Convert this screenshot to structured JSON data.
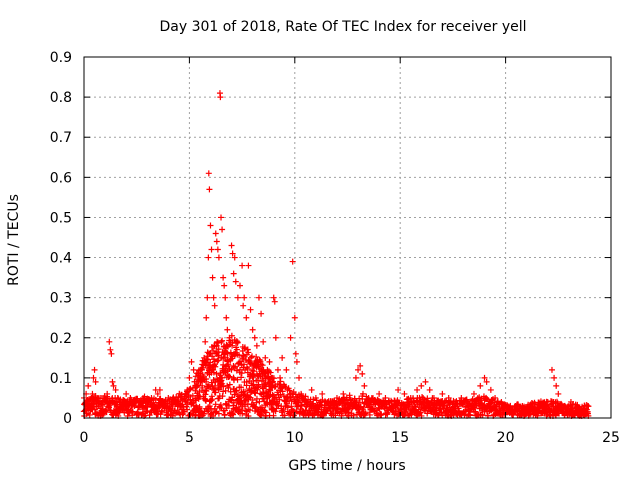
{
  "chart_data": {
    "type": "scatter",
    "title": "Day 301 of 2018, Rate Of TEC Index for receiver yell",
    "xlabel": "GPS time / hours",
    "ylabel": "ROTI / TECUs",
    "xlim": [
      0,
      25
    ],
    "ylim": [
      0,
      0.9
    ],
    "xticks": [
      0,
      5,
      10,
      15,
      20,
      25
    ],
    "yticks": [
      0,
      0.1,
      0.2,
      0.3,
      0.4,
      0.5,
      0.6,
      0.7,
      0.8,
      0.9
    ],
    "xtick_labels": [
      "0",
      "5",
      "10",
      "15",
      "20",
      "25"
    ],
    "ytick_labels": [
      "0",
      "0.1",
      "0.2",
      "0.3",
      "0.4",
      "0.5",
      "0.6",
      "0.7",
      "0.8",
      "0.9"
    ],
    "grid": true,
    "marker": "+",
    "color": "#ff0000",
    "series": [
      {
        "name": "ROTI",
        "points": [
          [
            0.0,
            0.05
          ],
          [
            0.1,
            0.06
          ],
          [
            0.15,
            0.03
          ],
          [
            0.2,
            0.08
          ],
          [
            0.3,
            0.02
          ],
          [
            0.35,
            0.05
          ],
          [
            0.4,
            0.06
          ],
          [
            0.45,
            0.1
          ],
          [
            0.5,
            0.12
          ],
          [
            0.55,
            0.09
          ],
          [
            0.6,
            0.04
          ],
          [
            0.7,
            0.03
          ],
          [
            0.8,
            0.05
          ],
          [
            0.9,
            0.02
          ],
          [
            1.0,
            0.04
          ],
          [
            1.1,
            0.06
          ],
          [
            1.2,
            0.19
          ],
          [
            1.25,
            0.17
          ],
          [
            1.3,
            0.16
          ],
          [
            1.35,
            0.09
          ],
          [
            1.4,
            0.08
          ],
          [
            1.5,
            0.07
          ],
          [
            1.6,
            0.05
          ],
          [
            1.8,
            0.04
          ],
          [
            2.0,
            0.06
          ],
          [
            2.2,
            0.05
          ],
          [
            2.4,
            0.03
          ],
          [
            2.6,
            0.04
          ],
          [
            2.8,
            0.05
          ],
          [
            3.0,
            0.04
          ],
          [
            3.2,
            0.05
          ],
          [
            3.4,
            0.07
          ],
          [
            3.5,
            0.06
          ],
          [
            3.6,
            0.07
          ],
          [
            3.8,
            0.04
          ],
          [
            4.0,
            0.05
          ],
          [
            4.2,
            0.03
          ],
          [
            4.4,
            0.04
          ],
          [
            4.6,
            0.05
          ],
          [
            4.8,
            0.06
          ],
          [
            4.9,
            0.07
          ],
          [
            5.0,
            0.1
          ],
          [
            5.1,
            0.14
          ],
          [
            5.2,
            0.12
          ],
          [
            5.3,
            0.08
          ],
          [
            5.4,
            0.09
          ],
          [
            5.5,
            0.1
          ],
          [
            5.6,
            0.12
          ],
          [
            5.7,
            0.15
          ],
          [
            5.75,
            0.19
          ],
          [
            5.8,
            0.25
          ],
          [
            5.85,
            0.3
          ],
          [
            5.9,
            0.4
          ],
          [
            5.92,
            0.61
          ],
          [
            5.95,
            0.57
          ],
          [
            6.0,
            0.48
          ],
          [
            6.05,
            0.42
          ],
          [
            6.1,
            0.35
          ],
          [
            6.15,
            0.3
          ],
          [
            6.2,
            0.28
          ],
          [
            6.25,
            0.46
          ],
          [
            6.3,
            0.44
          ],
          [
            6.35,
            0.42
          ],
          [
            6.4,
            0.4
          ],
          [
            6.45,
            0.81
          ],
          [
            6.47,
            0.8
          ],
          [
            6.5,
            0.5
          ],
          [
            6.55,
            0.47
          ],
          [
            6.6,
            0.35
          ],
          [
            6.65,
            0.33
          ],
          [
            6.7,
            0.3
          ],
          [
            6.75,
            0.25
          ],
          [
            6.8,
            0.22
          ],
          [
            6.9,
            0.2
          ],
          [
            7.0,
            0.43
          ],
          [
            7.05,
            0.41
          ],
          [
            7.1,
            0.36
          ],
          [
            7.15,
            0.4
          ],
          [
            7.2,
            0.34
          ],
          [
            7.3,
            0.3
          ],
          [
            7.4,
            0.33
          ],
          [
            7.5,
            0.38
          ],
          [
            7.55,
            0.28
          ],
          [
            7.6,
            0.3
          ],
          [
            7.7,
            0.25
          ],
          [
            7.8,
            0.38
          ],
          [
            7.9,
            0.27
          ],
          [
            8.0,
            0.22
          ],
          [
            8.1,
            0.2
          ],
          [
            8.2,
            0.18
          ],
          [
            8.3,
            0.3
          ],
          [
            8.4,
            0.26
          ],
          [
            8.5,
            0.19
          ],
          [
            8.6,
            0.15
          ],
          [
            8.7,
            0.12
          ],
          [
            8.8,
            0.14
          ],
          [
            8.9,
            0.1
          ],
          [
            9.0,
            0.3
          ],
          [
            9.05,
            0.29
          ],
          [
            9.1,
            0.2
          ],
          [
            9.2,
            0.12
          ],
          [
            9.3,
            0.1
          ],
          [
            9.4,
            0.15
          ],
          [
            9.5,
            0.08
          ],
          [
            9.6,
            0.12
          ],
          [
            9.8,
            0.2
          ],
          [
            9.9,
            0.39
          ],
          [
            10.0,
            0.25
          ],
          [
            10.05,
            0.16
          ],
          [
            10.1,
            0.14
          ],
          [
            10.2,
            0.1
          ],
          [
            10.3,
            0.06
          ],
          [
            10.5,
            0.04
          ],
          [
            10.8,
            0.07
          ],
          [
            11.0,
            0.05
          ],
          [
            11.3,
            0.06
          ],
          [
            11.6,
            0.04
          ],
          [
            12.0,
            0.05
          ],
          [
            12.3,
            0.06
          ],
          [
            12.6,
            0.05
          ],
          [
            12.9,
            0.1
          ],
          [
            13.0,
            0.12
          ],
          [
            13.1,
            0.13
          ],
          [
            13.2,
            0.11
          ],
          [
            13.3,
            0.08
          ],
          [
            13.5,
            0.05
          ],
          [
            13.8,
            0.04
          ],
          [
            14.0,
            0.06
          ],
          [
            14.3,
            0.05
          ],
          [
            14.6,
            0.04
          ],
          [
            14.9,
            0.07
          ],
          [
            15.2,
            0.06
          ],
          [
            15.5,
            0.05
          ],
          [
            15.8,
            0.07
          ],
          [
            16.0,
            0.08
          ],
          [
            16.2,
            0.09
          ],
          [
            16.4,
            0.07
          ],
          [
            16.6,
            0.05
          ],
          [
            16.8,
            0.04
          ],
          [
            17.0,
            0.06
          ],
          [
            17.3,
            0.05
          ],
          [
            17.6,
            0.04
          ],
          [
            17.9,
            0.05
          ],
          [
            18.2,
            0.04
          ],
          [
            18.5,
            0.06
          ],
          [
            18.8,
            0.08
          ],
          [
            19.0,
            0.1
          ],
          [
            19.1,
            0.09
          ],
          [
            19.3,
            0.07
          ],
          [
            19.5,
            0.05
          ],
          [
            19.8,
            0.04
          ],
          [
            20.0,
            0.03
          ],
          [
            20.4,
            0.02
          ],
          [
            20.8,
            0.03
          ],
          [
            21.2,
            0.02
          ],
          [
            21.6,
            0.03
          ],
          [
            22.0,
            0.04
          ],
          [
            22.2,
            0.12
          ],
          [
            22.3,
            0.1
          ],
          [
            22.4,
            0.08
          ],
          [
            22.5,
            0.06
          ],
          [
            22.8,
            0.03
          ],
          [
            23.1,
            0.04
          ],
          [
            23.4,
            0.03
          ],
          [
            23.7,
            0.02
          ],
          [
            23.9,
            0.03
          ]
        ]
      }
    ],
    "background_band": [
      [
        0,
        0.04
      ],
      [
        0.5,
        0.05
      ],
      [
        1,
        0.05
      ],
      [
        2,
        0.04
      ],
      [
        3,
        0.05
      ],
      [
        4,
        0.04
      ],
      [
        5,
        0.07
      ],
      [
        6,
        0.18
      ],
      [
        7,
        0.2
      ],
      [
        8,
        0.16
      ],
      [
        9,
        0.1
      ],
      [
        10,
        0.06
      ],
      [
        11,
        0.04
      ],
      [
        12,
        0.04
      ],
      [
        13,
        0.06
      ],
      [
        14,
        0.04
      ],
      [
        15,
        0.04
      ],
      [
        16,
        0.05
      ],
      [
        17,
        0.04
      ],
      [
        18,
        0.04
      ],
      [
        19,
        0.05
      ],
      [
        20,
        0.03
      ],
      [
        21,
        0.03
      ],
      [
        22,
        0.04
      ],
      [
        23,
        0.03
      ],
      [
        24,
        0.03
      ]
    ]
  }
}
